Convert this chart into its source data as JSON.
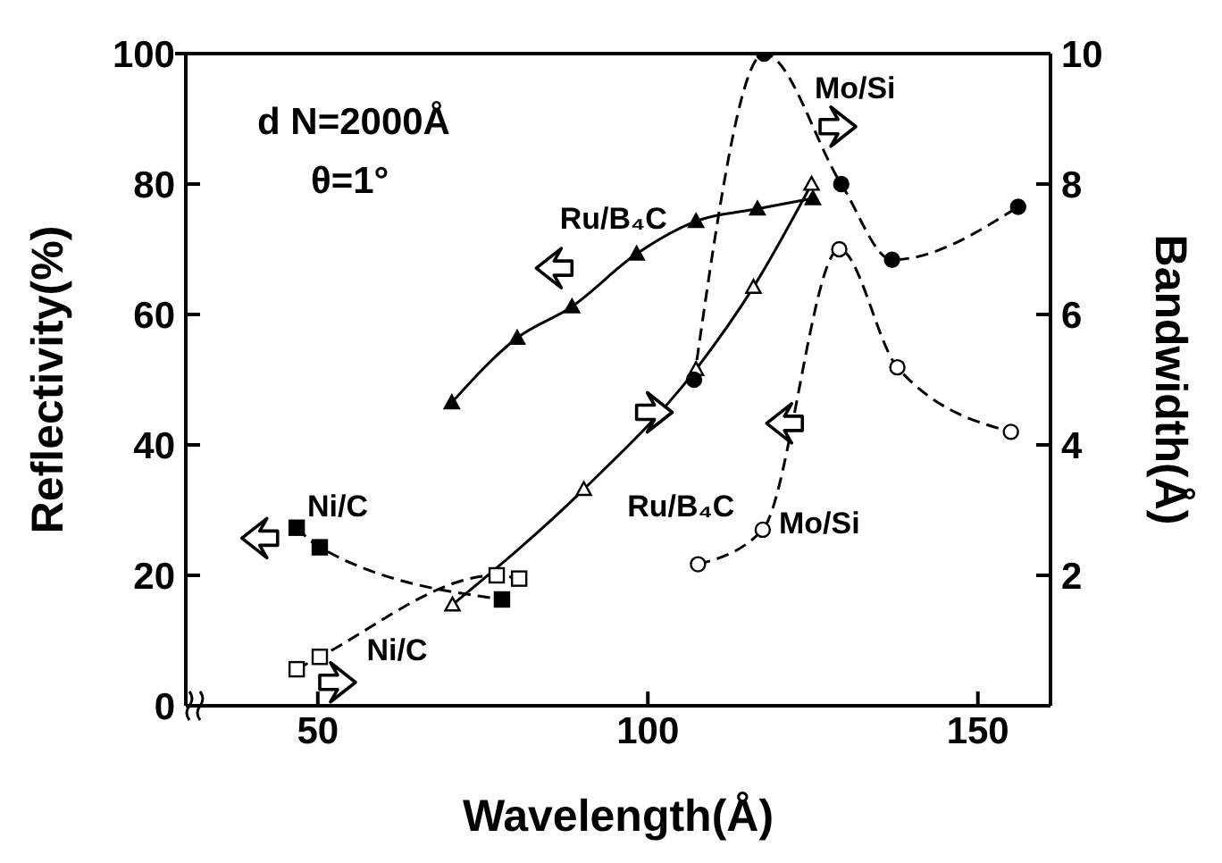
{
  "chart_data": {
    "type": "line",
    "xlabel": "Wavelength(Å)",
    "ylabel": "Reflectivity(%)",
    "y2label": "Bandwidth(Å)",
    "annotations": [
      "d N=2000Å",
      "θ=1°"
    ],
    "xlim": [
      30,
      161
    ],
    "xticks": [
      50,
      100,
      150
    ],
    "ylim": [
      0,
      100
    ],
    "yticks": [
      0,
      20,
      40,
      60,
      80,
      100
    ],
    "y2lim": [
      0,
      10
    ],
    "y2ticks": [
      2,
      4,
      6,
      8,
      10
    ],
    "grid": false,
    "legend": false,
    "series": [
      {
        "name": "Ru/B₄C",
        "color": "#000000",
        "marker": "triangle",
        "line_style": "solid",
        "x": [
          70.3,
          80.2,
          88.5,
          98.3,
          107.3,
          116.6,
          125.0
        ],
        "values": [
          46.5,
          56.4,
          61.2,
          69.3,
          74.3,
          76.2,
          77.8
        ]
      },
      {
        "name": "Ru/B₄C",
        "color": "#000000",
        "marker": "triangle",
        "line_style": "solid",
        "axis": "y2",
        "x": [
          70.4,
          90.3,
          107.3,
          116.0,
          124.8
        ],
        "values": [
          1.55,
          3.32,
          5.16,
          6.42,
          8.0
        ]
      },
      {
        "name": "Ni/C",
        "color": "#000000",
        "marker": "square",
        "line_style": "dashed",
        "x": [
          46.8,
          50.3,
          77.9
        ],
        "values": [
          27.3,
          24.3,
          16.3
        ]
      },
      {
        "name": "Ni/C",
        "color": "#000000",
        "marker": "square",
        "line_style": "dashed",
        "axis": "y2",
        "x": [
          46.8,
          50.3,
          77.1,
          80.5
        ],
        "values": [
          0.56,
          0.75,
          2.0,
          1.95
        ]
      },
      {
        "name": "Mo/Si",
        "color": "#000000",
        "marker": "circle",
        "line_style": "dashed",
        "axis": "y2",
        "x": [
          107.0,
          117.6,
          129.3,
          137.0,
          156.1
        ],
        "values": [
          5.0,
          10.0,
          8.0,
          6.84,
          7.65
        ]
      },
      {
        "name": "Mo/Si",
        "color": "#000000",
        "marker": "circle",
        "line_style": "dashed",
        "x": [
          107.6,
          117.4,
          129.0,
          137.8,
          155.0
        ],
        "values": [
          21.7,
          27,
          70,
          51.9,
          42
        ]
      }
    ]
  }
}
